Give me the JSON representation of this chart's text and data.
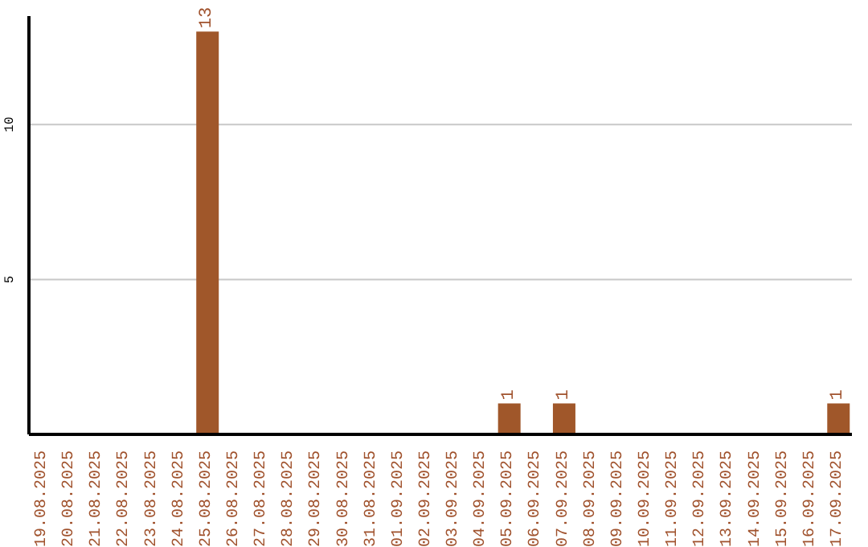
{
  "chart_data": {
    "type": "bar",
    "categories": [
      "19.08.2025",
      "20.08.2025",
      "21.08.2025",
      "22.08.2025",
      "23.08.2025",
      "24.08.2025",
      "25.08.2025",
      "26.08.2025",
      "27.08.2025",
      "28.08.2025",
      "29.08.2025",
      "30.08.2025",
      "31.08.2025",
      "01.09.2025",
      "02.09.2025",
      "03.09.2025",
      "04.09.2025",
      "05.09.2025",
      "06.09.2025",
      "07.09.2025",
      "08.09.2025",
      "09.09.2025",
      "10.09.2025",
      "11.09.2025",
      "12.09.2025",
      "13.09.2025",
      "14.09.2025",
      "15.09.2025",
      "16.09.2025",
      "17.09.2025"
    ],
    "values": [
      0,
      0,
      0,
      0,
      0,
      0,
      13,
      0,
      0,
      0,
      0,
      0,
      0,
      0,
      0,
      0,
      0,
      1,
      0,
      1,
      0,
      0,
      0,
      0,
      0,
      0,
      0,
      0,
      0,
      1
    ],
    "value_labels": [
      null,
      null,
      null,
      null,
      null,
      null,
      "13",
      null,
      null,
      null,
      null,
      null,
      null,
      null,
      null,
      null,
      null,
      "1",
      null,
      "1",
      null,
      null,
      null,
      null,
      null,
      null,
      null,
      null,
      null,
      "1"
    ],
    "color": "#a0572a",
    "ylim": [
      0,
      13.5
    ],
    "yticks": [
      5,
      10
    ],
    "grid": "y"
  }
}
